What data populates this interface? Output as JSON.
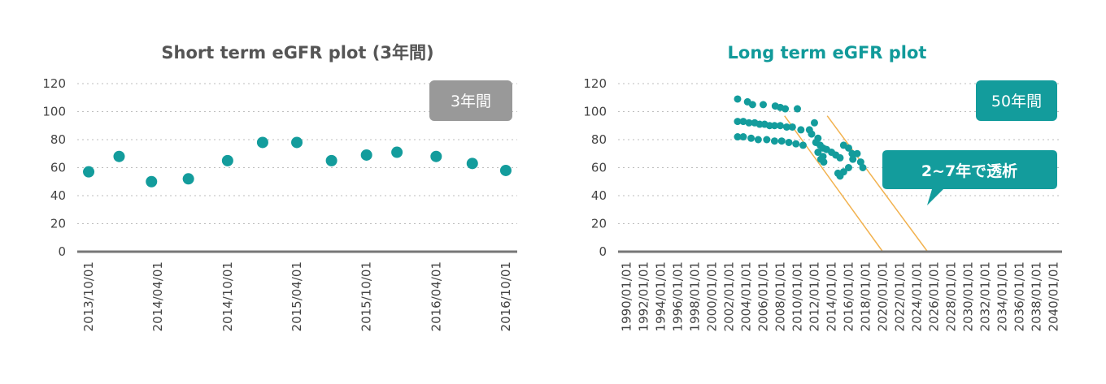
{
  "chart_data": [
    {
      "type": "scatter",
      "title": "Short term eGFR plot (3年間)",
      "badge": "3年間",
      "ylim": [
        0,
        120
      ],
      "yticks": [
        0,
        20,
        40,
        60,
        80,
        100,
        120
      ],
      "xlim": [
        "2013/09/01",
        "2016/10/31"
      ],
      "xticks": [
        "2013/10/01",
        "2014/04/01",
        "2014/10/01",
        "2015/04/01",
        "2015/10/01",
        "2016/04/01",
        "2016/10/01"
      ],
      "grid": true,
      "point_color": "#139c9c",
      "points": [
        {
          "x": "2013/10/01",
          "y": 57
        },
        {
          "x": "2013/12/20",
          "y": 68
        },
        {
          "x": "2014/03/15",
          "y": 50
        },
        {
          "x": "2014/06/20",
          "y": 52
        },
        {
          "x": "2014/10/01",
          "y": 65
        },
        {
          "x": "2015/01/01",
          "y": 78
        },
        {
          "x": "2015/04/01",
          "y": 78
        },
        {
          "x": "2015/07/01",
          "y": 65
        },
        {
          "x": "2015/10/01",
          "y": 69
        },
        {
          "x": "2015/12/20",
          "y": 71
        },
        {
          "x": "2016/04/01",
          "y": 68
        },
        {
          "x": "2016/07/05",
          "y": 63
        },
        {
          "x": "2016/10/01",
          "y": 58
        }
      ]
    },
    {
      "type": "scatter",
      "title": "Long term eGFR plot",
      "badge": "50年間",
      "callout": "2~7年で透析",
      "ylim": [
        0,
        120
      ],
      "yticks": [
        0,
        20,
        40,
        60,
        80,
        100,
        120
      ],
      "xlim": [
        "1989/01/01",
        "2041/01/01"
      ],
      "xticks": [
        "1990/01/01",
        "1992/01/01",
        "1994/01/01",
        "1996/01/01",
        "1998/01/01",
        "2000/01/01",
        "2002/01/01",
        "2004/01/01",
        "2006/01/01",
        "2008/01/01",
        "2010/01/01",
        "2012/01/01",
        "2014/01/01",
        "2016/01/01",
        "2018/01/01",
        "2020/01/01",
        "2022/01/01",
        "2024/01/01",
        "2026/01/01",
        "2028/01/01",
        "2030/01/01",
        "2032/01/01",
        "2034/01/01",
        "2036/01/01",
        "2038/01/01",
        "2040/01/01"
      ],
      "grid": true,
      "point_color": "#139c9c",
      "trend_color": "#f2b24f",
      "trend_lines": [
        {
          "x1": "2008/07/01",
          "y1": 97,
          "x2": "2020/01/01",
          "y2": 0
        },
        {
          "x1": "2013/07/01",
          "y1": 97,
          "x2": "2025/04/01",
          "y2": 0
        }
      ],
      "points": [
        {
          "x": "2003/01/01",
          "y": 109
        },
        {
          "x": "2004/03/01",
          "y": 107
        },
        {
          "x": "2004/10/01",
          "y": 105
        },
        {
          "x": "2006/01/01",
          "y": 105
        },
        {
          "x": "2007/06/01",
          "y": 104
        },
        {
          "x": "2008/01/01",
          "y": 103
        },
        {
          "x": "2008/08/01",
          "y": 102
        },
        {
          "x": "2010/01/01",
          "y": 102
        },
        {
          "x": "2003/01/01",
          "y": 93
        },
        {
          "x": "2003/09/01",
          "y": 93
        },
        {
          "x": "2004/05/01",
          "y": 92
        },
        {
          "x": "2005/01/01",
          "y": 92
        },
        {
          "x": "2005/08/01",
          "y": 91
        },
        {
          "x": "2006/03/01",
          "y": 91
        },
        {
          "x": "2006/10/01",
          "y": 90
        },
        {
          "x": "2007/05/01",
          "y": 90
        },
        {
          "x": "2008/01/01",
          "y": 90
        },
        {
          "x": "2008/10/01",
          "y": 89
        },
        {
          "x": "2009/06/01",
          "y": 89
        },
        {
          "x": "2010/06/01",
          "y": 87
        },
        {
          "x": "2003/01/01",
          "y": 82
        },
        {
          "x": "2003/09/01",
          "y": 82
        },
        {
          "x": "2004/08/01",
          "y": 81
        },
        {
          "x": "2005/06/01",
          "y": 80
        },
        {
          "x": "2006/06/01",
          "y": 80
        },
        {
          "x": "2007/05/01",
          "y": 79
        },
        {
          "x": "2008/03/01",
          "y": 79
        },
        {
          "x": "2009/01/01",
          "y": 78
        },
        {
          "x": "2009/11/01",
          "y": 77
        },
        {
          "x": "2010/09/01",
          "y": 76
        },
        {
          "x": "2011/06/01",
          "y": 87
        },
        {
          "x": "2012/01/01",
          "y": 92
        },
        {
          "x": "2011/09/01",
          "y": 84
        },
        {
          "x": "2012/06/01",
          "y": 81
        },
        {
          "x": "2012/03/01",
          "y": 78
        },
        {
          "x": "2012/09/01",
          "y": 76
        },
        {
          "x": "2013/01/01",
          "y": 74
        },
        {
          "x": "2013/06/01",
          "y": 73
        },
        {
          "x": "2012/06/01",
          "y": 71
        },
        {
          "x": "2013/01/01",
          "y": 68
        },
        {
          "x": "2012/10/01",
          "y": 66
        },
        {
          "x": "2013/02/01",
          "y": 64
        },
        {
          "x": "2014/01/01",
          "y": 71
        },
        {
          "x": "2014/07/01",
          "y": 69
        },
        {
          "x": "2015/01/01",
          "y": 67
        },
        {
          "x": "2015/06/01",
          "y": 76
        },
        {
          "x": "2016/01/01",
          "y": 74
        },
        {
          "x": "2016/06/01",
          "y": 70
        },
        {
          "x": "2017/01/01",
          "y": 70
        },
        {
          "x": "2016/07/01",
          "y": 66
        },
        {
          "x": "2017/06/01",
          "y": 64
        },
        {
          "x": "2017/09/01",
          "y": 60
        },
        {
          "x": "2016/01/01",
          "y": 60
        },
        {
          "x": "2015/06/01",
          "y": 57
        },
        {
          "x": "2014/10/01",
          "y": 56
        },
        {
          "x": "2015/01/01",
          "y": 54
        }
      ]
    }
  ]
}
